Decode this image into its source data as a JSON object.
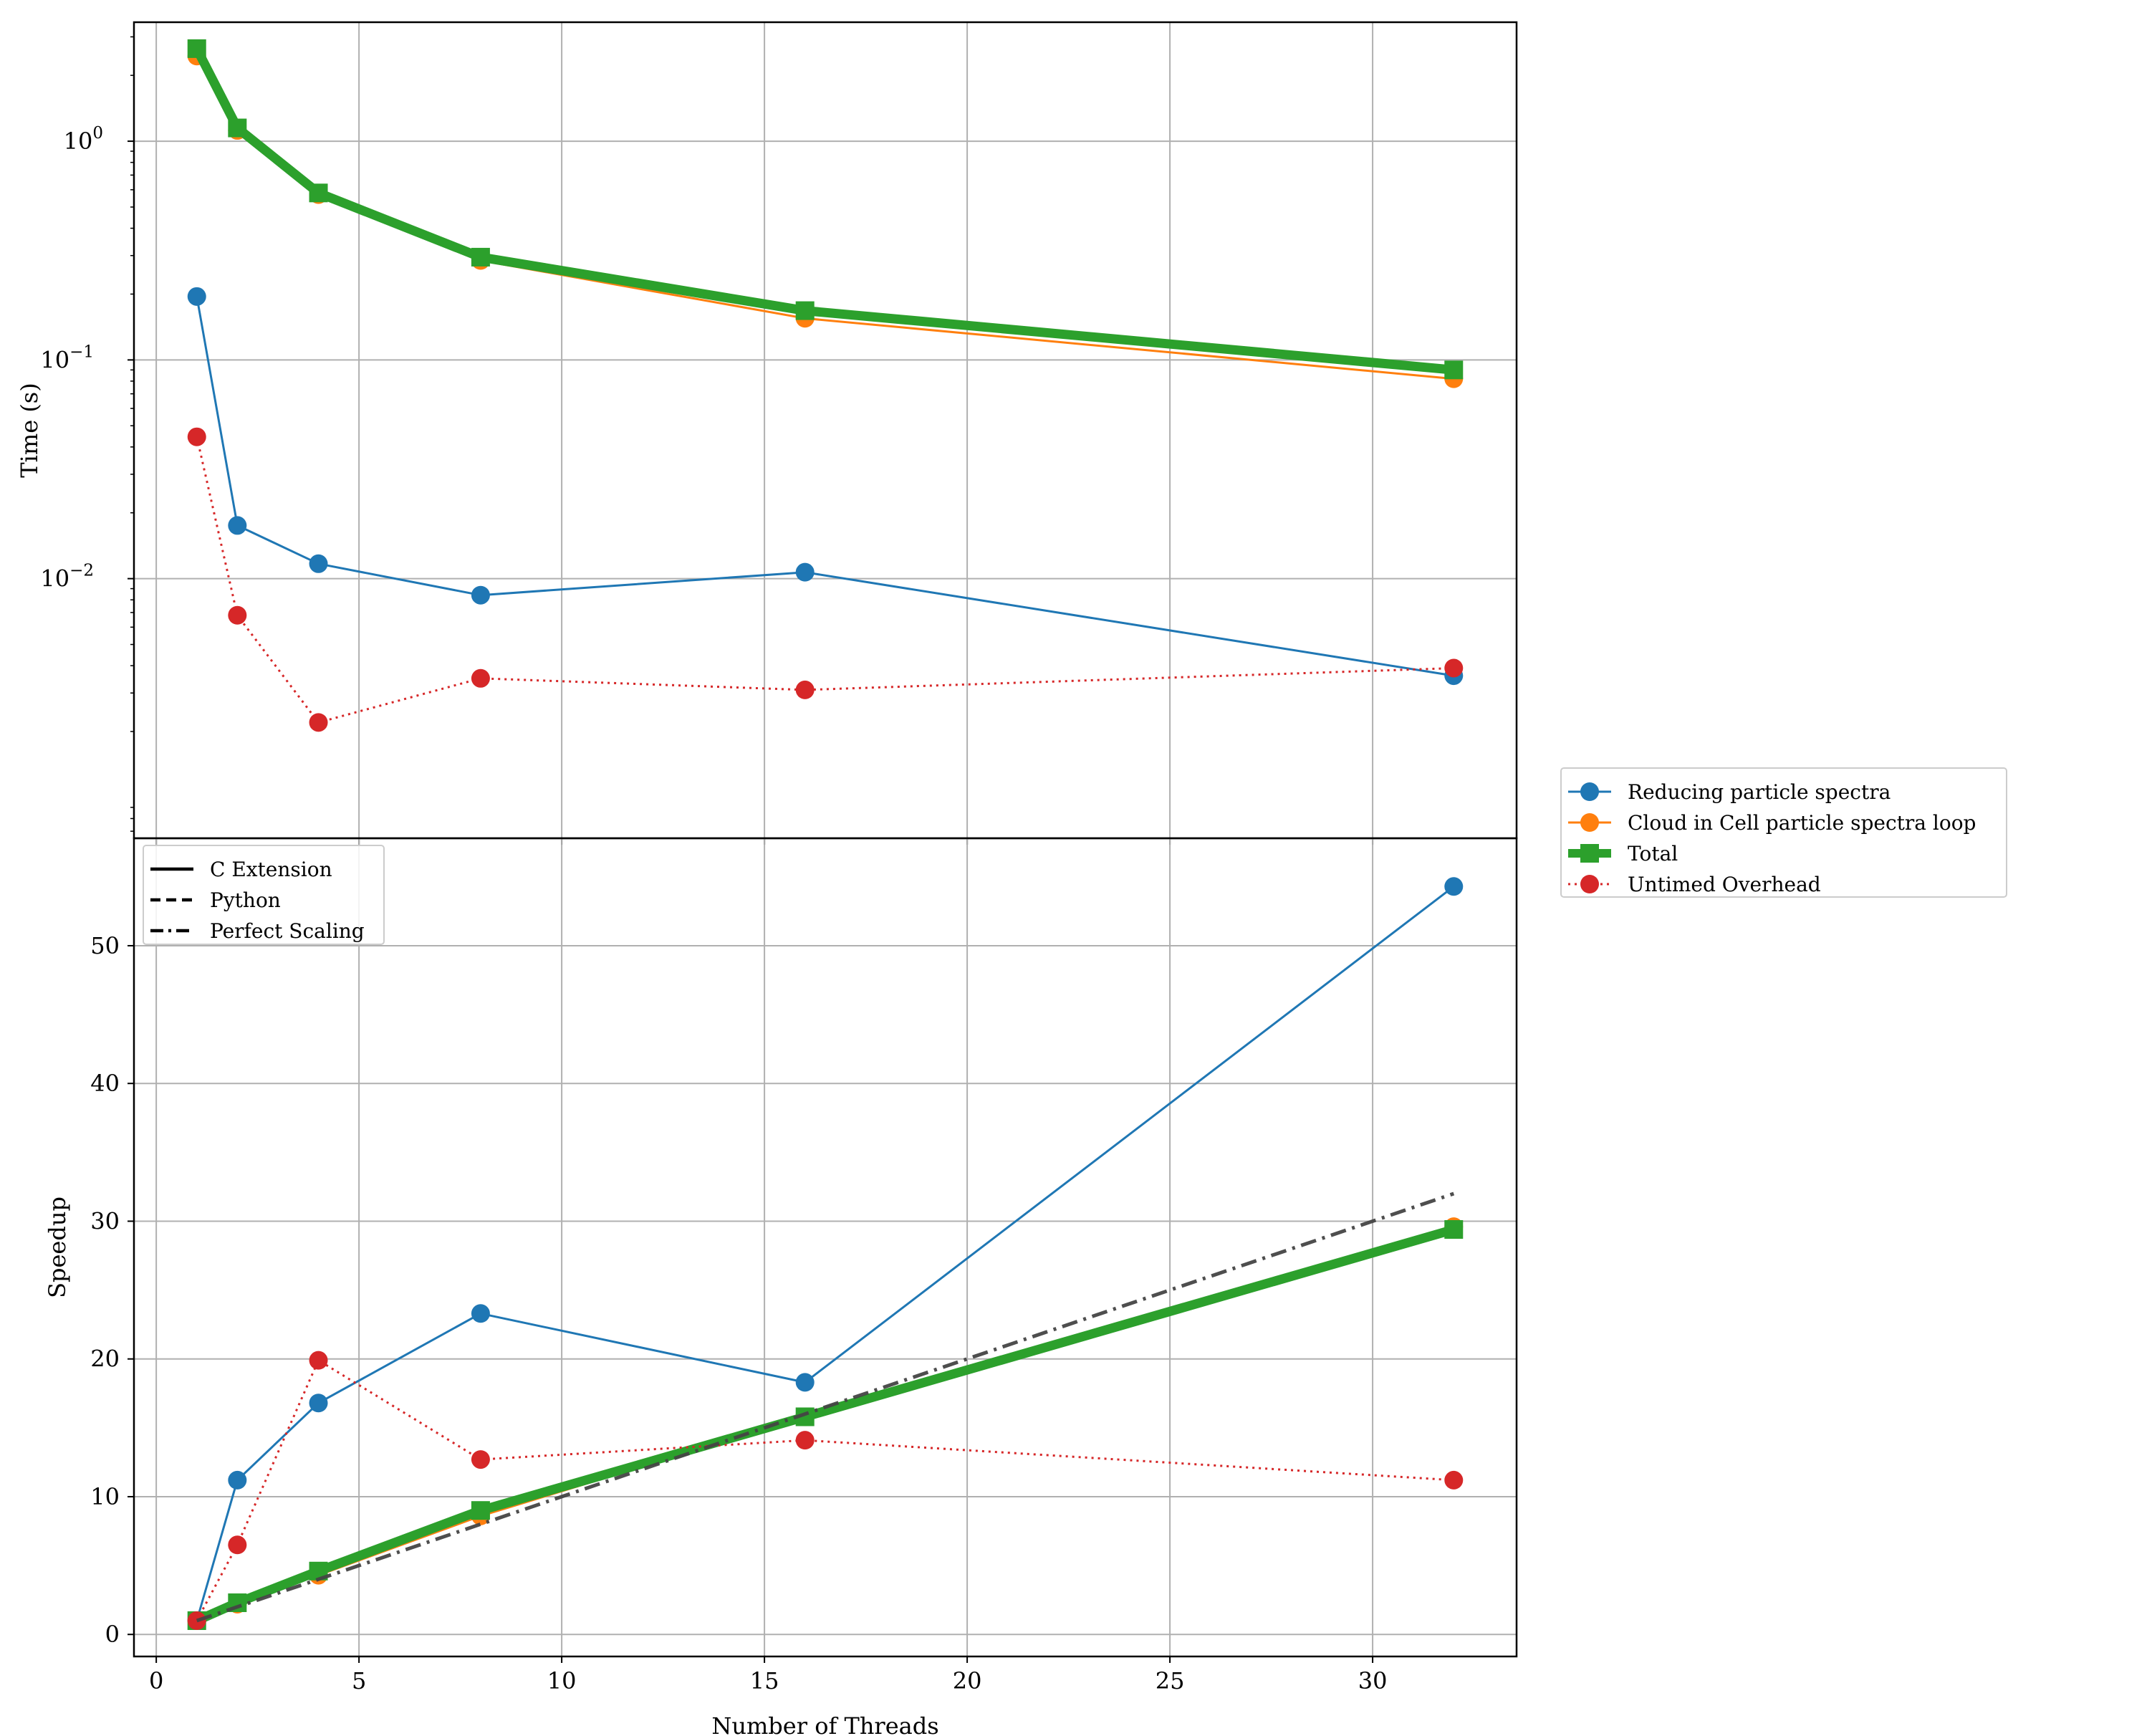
{
  "chart_data": [
    {
      "type": "line",
      "panel": "top",
      "yscale": "log",
      "ylabel": "Time (s)",
      "xlim": [
        -0.55,
        33.55
      ],
      "ylim": [
        0.00065,
        3.5
      ],
      "grid": true,
      "yticks": [
        {
          "value": 1,
          "base": "10",
          "exp": "0"
        },
        {
          "value": 0.1,
          "base": "10",
          "exp": "−1"
        },
        {
          "value": 0.01,
          "base": "10",
          "exp": "−2"
        }
      ],
      "x": [
        1,
        2,
        4,
        8,
        16,
        32
      ],
      "series": [
        {
          "name": "Reducing particle spectra",
          "color": "#1f77b4",
          "marker": "circle",
          "linestyle": "solid",
          "values": [
            0.195,
            0.0175,
            0.0117,
            0.0084,
            0.0107,
            0.0036
          ]
        },
        {
          "name": "Cloud in Cell particle spectra loop",
          "color": "#ff7f0e",
          "marker": "circle",
          "linestyle": "solid",
          "values": [
            2.45,
            1.12,
            0.57,
            0.285,
            0.155,
            0.082
          ]
        },
        {
          "name": "Total",
          "color": "#2ca02c",
          "marker": "square",
          "linestyle": "solid-thick",
          "values": [
            2.65,
            1.15,
            0.58,
            0.295,
            0.168,
            0.09
          ]
        },
        {
          "name": "Untimed Overhead",
          "color": "#d62728",
          "marker": "circle",
          "linestyle": "dotted",
          "values": [
            0.0445,
            0.0068,
            0.0022,
            0.0035,
            0.0031,
            0.0039
          ]
        }
      ]
    },
    {
      "type": "line",
      "panel": "bottom",
      "ylabel": "Speedup",
      "xlabel": "Number of Threads",
      "xlim": [
        -0.55,
        33.55
      ],
      "ylim": [
        -1.6,
        57.8
      ],
      "grid": true,
      "xticks": [
        0,
        5,
        10,
        15,
        20,
        25,
        30
      ],
      "yticks": [
        0,
        10,
        20,
        30,
        40,
        50
      ],
      "x": [
        1,
        2,
        4,
        8,
        16,
        32
      ],
      "series": [
        {
          "name": "Reducing particle spectra",
          "color": "#1f77b4",
          "marker": "circle",
          "linestyle": "solid",
          "values": [
            1.0,
            11.2,
            16.8,
            23.3,
            18.3,
            54.3
          ]
        },
        {
          "name": "Cloud in Cell particle spectra loop",
          "color": "#ff7f0e",
          "marker": "circle",
          "linestyle": "solid",
          "values": [
            1.0,
            2.2,
            4.3,
            8.6,
            15.8,
            29.6
          ]
        },
        {
          "name": "Total",
          "color": "#2ca02c",
          "marker": "square",
          "linestyle": "solid-thick",
          "values": [
            1.0,
            2.3,
            4.6,
            9.0,
            15.8,
            29.4
          ]
        },
        {
          "name": "Untimed Overhead",
          "color": "#d62728",
          "marker": "circle",
          "linestyle": "dotted",
          "values": [
            1.0,
            6.5,
            19.9,
            12.7,
            14.1,
            11.2
          ]
        },
        {
          "name": "Perfect Scaling",
          "color": "#444444",
          "marker": "none",
          "linestyle": "dashdot",
          "values": [
            1,
            2,
            4,
            8,
            16,
            32
          ]
        }
      ]
    }
  ],
  "legend_main": {
    "placement": "right-center",
    "entries": [
      {
        "label": "Reducing particle spectra",
        "color": "#1f77b4",
        "marker": "circle",
        "linestyle": "solid"
      },
      {
        "label": "Cloud in Cell particle spectra loop",
        "color": "#ff7f0e",
        "marker": "circle",
        "linestyle": "solid"
      },
      {
        "label": "Total",
        "color": "#2ca02c",
        "marker": "square",
        "linestyle": "solid-thick"
      },
      {
        "label": "Untimed Overhead",
        "color": "#d62728",
        "marker": "circle",
        "linestyle": "dotted"
      }
    ]
  },
  "legend_styles": {
    "placement": "top-left",
    "entries": [
      {
        "label": "C Extension",
        "linestyle": "solid"
      },
      {
        "label": "Python",
        "linestyle": "dashed"
      },
      {
        "label": "Perfect Scaling",
        "linestyle": "dashdot"
      }
    ]
  }
}
